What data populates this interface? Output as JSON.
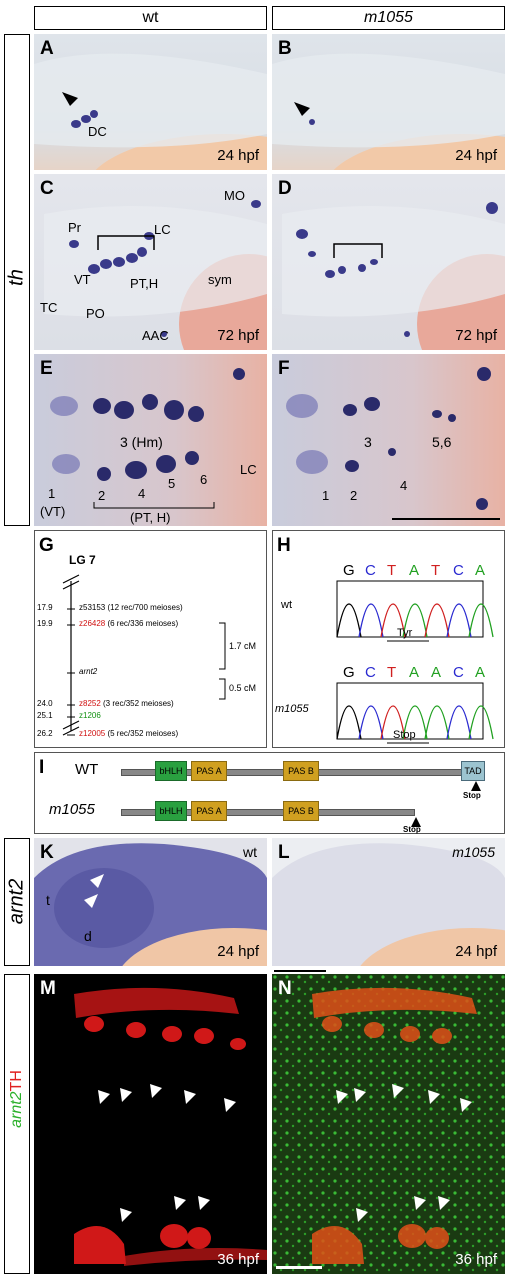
{
  "headers": {
    "wt": "wt",
    "mutant": "m1055"
  },
  "side_labels": {
    "th": "th",
    "arnt2": "arnt2",
    "arnt2_part": "arnt2",
    "th_protein": "TH"
  },
  "panels": {
    "A": {
      "label": "A",
      "stage": "24 hpf",
      "labels": [
        "DC"
      ]
    },
    "B": {
      "label": "B",
      "stage": "24 hpf"
    },
    "C": {
      "label": "C",
      "stage": "72 hpf",
      "labels": [
        "Pr",
        "LC",
        "MO",
        "VT",
        "PT,H",
        "TC",
        "PO",
        "sym",
        "AAC"
      ]
    },
    "D": {
      "label": "D",
      "stage": "72 hpf"
    },
    "E": {
      "label": "E",
      "labels": [
        "3 (Hm)",
        "1",
        "(VT)",
        "2",
        "4",
        "5",
        "6",
        "(PT, H)",
        "LC"
      ]
    },
    "F": {
      "label": "F",
      "labels": [
        "3",
        "5,6",
        "1",
        "2",
        "4"
      ]
    },
    "K": {
      "label": "K",
      "stage": "24 hpf",
      "genotype": "wt",
      "labels": [
        "t",
        "d"
      ]
    },
    "L": {
      "label": "L",
      "stage": "24 hpf",
      "genotype": "m1055"
    },
    "M": {
      "label": "M",
      "stage": "36 hpf"
    },
    "N": {
      "label": "N",
      "stage": "36 hpf"
    }
  },
  "map_G": {
    "label": "G",
    "title": "LG 7",
    "markers": [
      {
        "pos": "17.9",
        "name": "z53153",
        "info": "(12 rec/700 meioses)",
        "color": "#000000"
      },
      {
        "pos": "19.9",
        "name": "z26428",
        "info": "(6 rec/336 meioses)",
        "color": "#d01010"
      },
      {
        "pos": "",
        "name": "arnt2",
        "info": "",
        "color": "#000000"
      },
      {
        "pos": "24.0",
        "name": "z8252",
        "info": "(3 rec/352 meioses)",
        "color": "#d01010"
      },
      {
        "pos": "25.1",
        "name": "z1206",
        "info": "",
        "color": "#109010"
      },
      {
        "pos": "26.2",
        "name": "z12005",
        "info": "(5 rec/352 meioses)",
        "color": "#d01010"
      }
    ],
    "distances": [
      "1.7 cM",
      "0.5 cM"
    ]
  },
  "seq_H": {
    "label": "H",
    "wt_label": "wt",
    "mut_label": "m1055",
    "wt_bases": [
      "G",
      "C",
      "T",
      "A",
      "T",
      "C",
      "A"
    ],
    "mut_bases": [
      "G",
      "C",
      "T",
      "A",
      "A",
      "C",
      "A"
    ],
    "wt_codon": "Tyr",
    "mut_codon": "Stop",
    "base_colors": {
      "G": "#000000",
      "C": "#2a2ad0",
      "T": "#d02020",
      "A": "#20a020"
    }
  },
  "domains_I": {
    "label": "I",
    "wt_label": "WT",
    "mut_label": "m1055",
    "domains": [
      "bHLH",
      "PAS A",
      "PAS B"
    ],
    "tad": "TAD",
    "stop": "Stop",
    "colors": {
      "bHLH": "#2aa040",
      "PAS": "#d0a020",
      "TAD": "#9cc4d0",
      "bar": "#888888"
    }
  }
}
